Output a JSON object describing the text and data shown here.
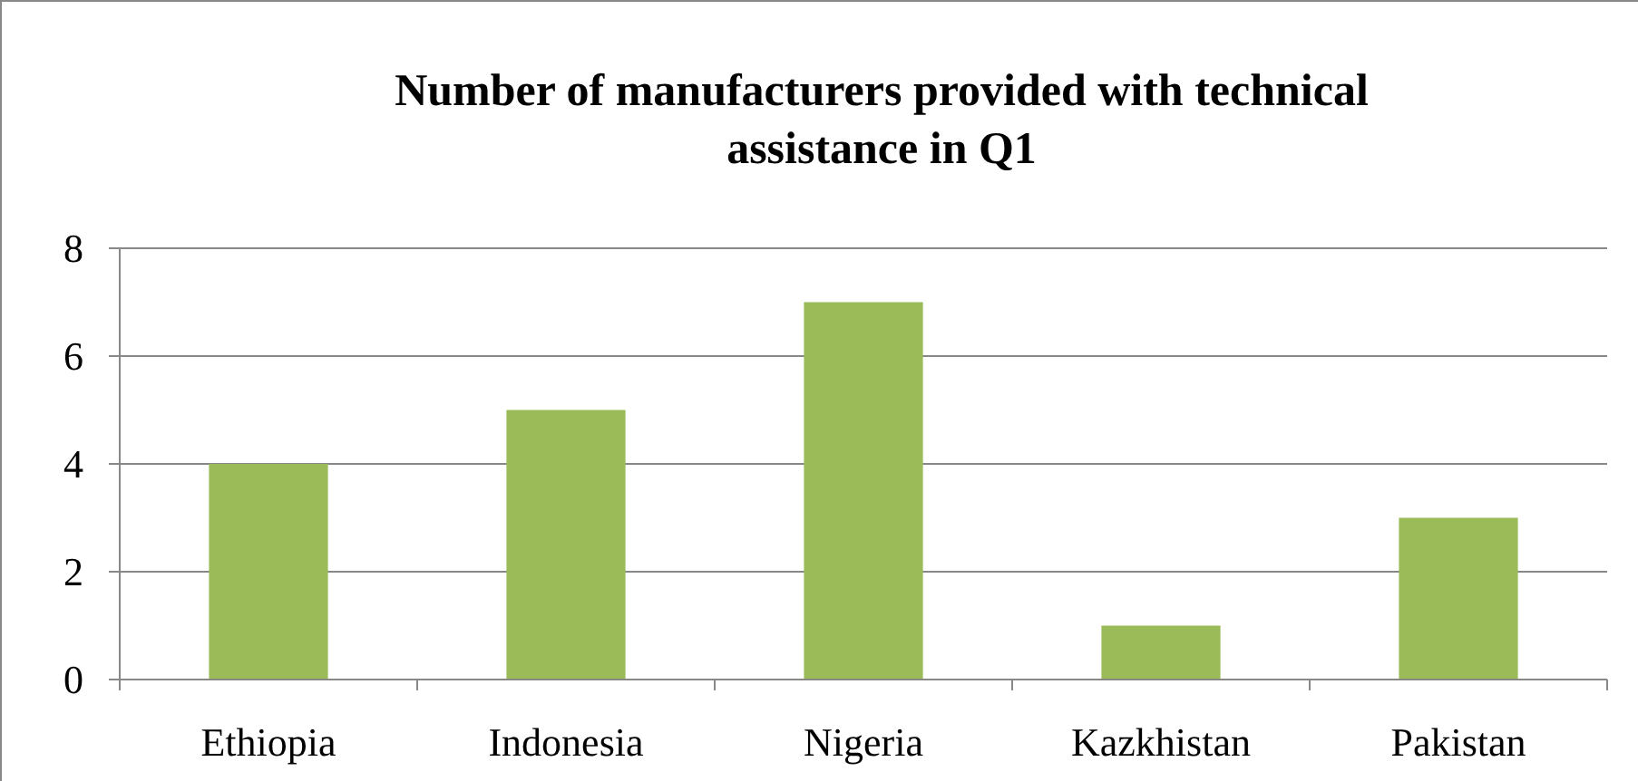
{
  "chart_data": {
    "type": "bar",
    "title": "Number of manufacturers provided with technical assistance in Q1",
    "categories": [
      "Ethiopia",
      "Indonesia",
      "Nigeria",
      "Kazkhistan",
      "Pakistan"
    ],
    "values": [
      4,
      5,
      7,
      1,
      3
    ],
    "color": "#9bbb59",
    "ylim": [
      0,
      8
    ],
    "yticks": [
      0,
      2,
      4,
      6,
      8
    ],
    "grid": "y"
  }
}
